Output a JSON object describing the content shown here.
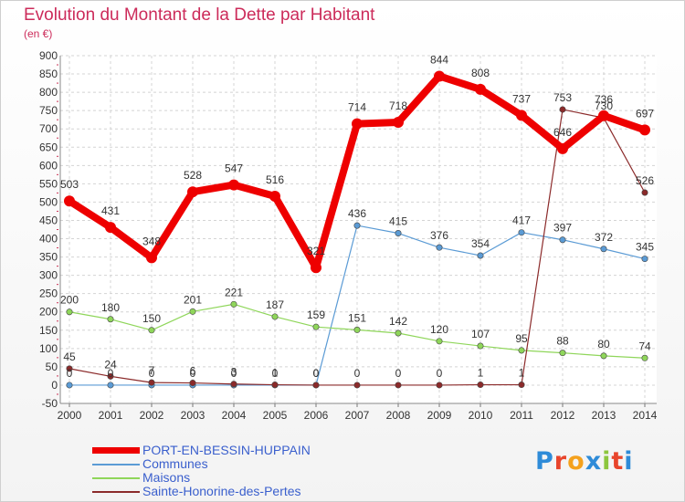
{
  "title": "Evolution du Montant de la Dette par Habitant",
  "subtitle": "(en €)",
  "logo": {
    "text": "Proxiti",
    "letter_colors": [
      "#2e8bd8",
      "#e8452c",
      "#f4a11d",
      "#2e8bd8",
      "#8cc63e",
      "#e8452c",
      "#2e8bd8"
    ]
  },
  "chart_data": {
    "type": "line",
    "x": [
      "2000",
      "2001",
      "2002",
      "2003",
      "2004",
      "2005",
      "2006",
      "2007",
      "2008",
      "2009",
      "2010",
      "2011",
      "2012",
      "2013",
      "2014"
    ],
    "ylim": [
      -50,
      900
    ],
    "yticks": [
      -50,
      0,
      50,
      100,
      150,
      200,
      250,
      300,
      350,
      400,
      450,
      500,
      550,
      600,
      650,
      700,
      750,
      800,
      850,
      900
    ],
    "grid": true,
    "legend_position": "bottom-left",
    "series": [
      {
        "name": "PORT-EN-BESSIN-HUPPAIN",
        "color": "#ee0000",
        "bold": true,
        "values": [
          503,
          431,
          348,
          528,
          547,
          516,
          321,
          714,
          718,
          844,
          808,
          737,
          646,
          736,
          697
        ],
        "labels": [
          "503",
          "431",
          "348",
          "528",
          "547",
          "516",
          "321",
          "714",
          "718",
          "844",
          "808",
          "737",
          "646",
          "736",
          "697"
        ]
      },
      {
        "name": "Communes",
        "color": "#5b9bd5",
        "bold": false,
        "values": [
          0,
          0,
          0,
          0,
          0,
          0,
          0,
          436,
          415,
          376,
          354,
          417,
          397,
          372,
          345
        ],
        "labels": [
          "0",
          "0",
          "0",
          "0",
          "0",
          "0",
          "0",
          "436",
          "415",
          "376",
          "354",
          "417",
          "397",
          "372",
          "345"
        ]
      },
      {
        "name": "Maisons",
        "color": "#8fd65a",
        "bold": false,
        "values": [
          200,
          180,
          150,
          201,
          221,
          187,
          159,
          151,
          142,
          120,
          107,
          95,
          88,
          80,
          74
        ],
        "labels": [
          "200",
          "180",
          "150",
          "201",
          "221",
          "187",
          "159",
          "151",
          "142",
          "120",
          "107",
          "95",
          "88",
          "80",
          "74"
        ]
      },
      {
        "name": "Sainte-Honorine-des-Pertes",
        "color": "#8b2a2a",
        "bold": false,
        "values": [
          45,
          24,
          7,
          6,
          3,
          1,
          0,
          0,
          0,
          0,
          1,
          1,
          753,
          730,
          526
        ],
        "labels": [
          "45",
          "24",
          "7",
          "6",
          "3",
          "1",
          "0",
          "0",
          "0",
          "0",
          "1",
          "1",
          "753",
          "730",
          "526"
        ]
      }
    ]
  }
}
